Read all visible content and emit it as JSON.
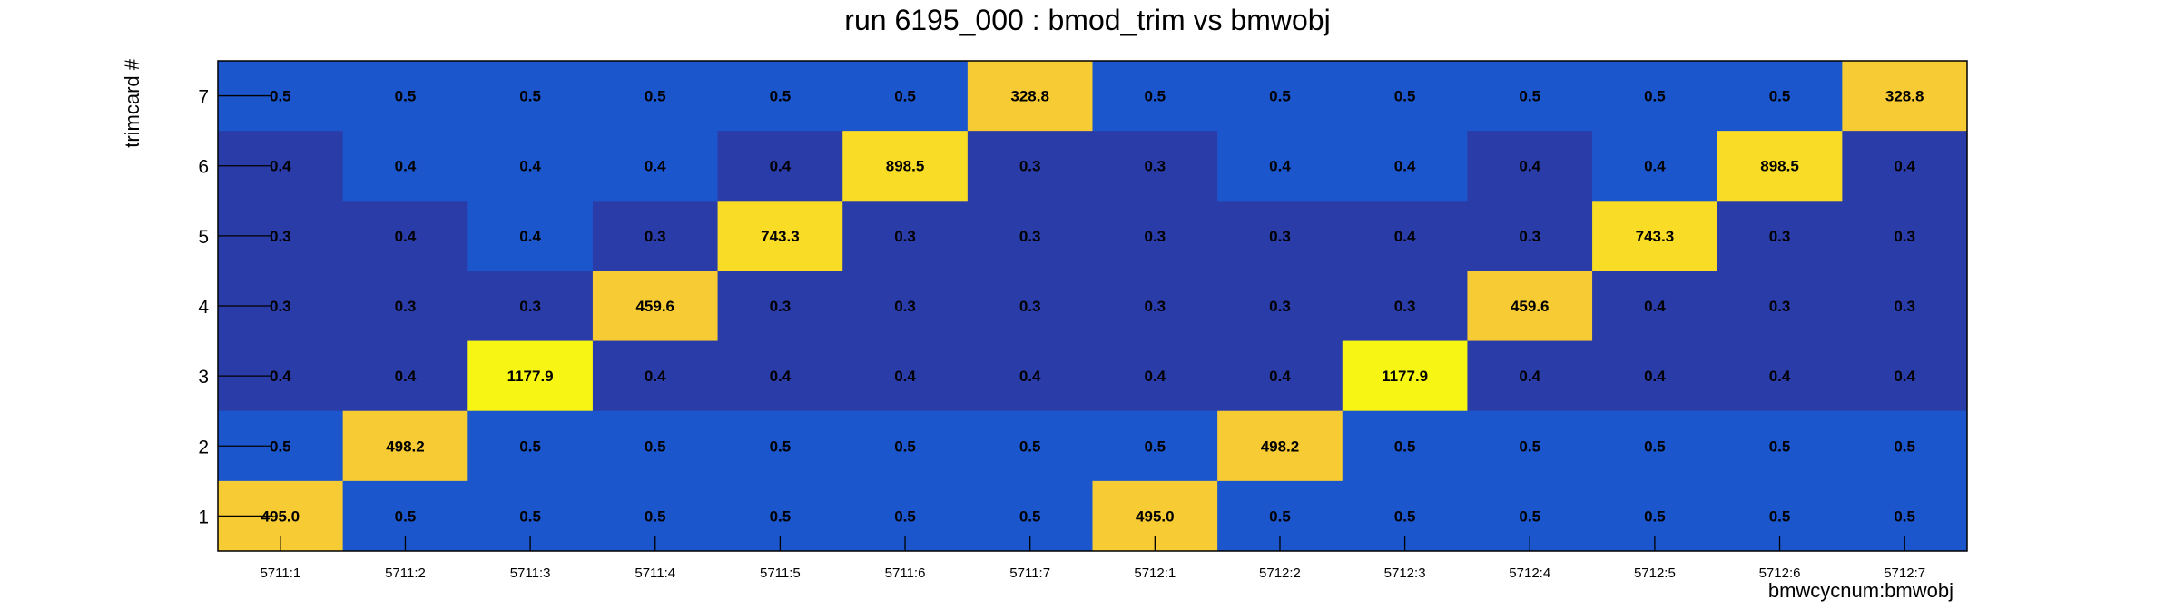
{
  "chart_data": {
    "type": "heatmap",
    "title": "run 6195_000 : bmod_trim vs bmwobj",
    "xlabel": "bmwcycnum:bmwobj",
    "ylabel": "trimcard #",
    "x_categories": [
      "5711:1",
      "5711:2",
      "5711:3",
      "5711:4",
      "5711:5",
      "5711:6",
      "5711:7",
      "5712:1",
      "5712:2",
      "5712:3",
      "5712:4",
      "5712:5",
      "5712:6",
      "5712:7"
    ],
    "y_categories": [
      "1",
      "2",
      "3",
      "4",
      "5",
      "6",
      "7"
    ],
    "values": [
      [
        "495.0",
        "0.5",
        "0.5",
        "0.5",
        "0.5",
        "0.5",
        "0.5",
        "495.0",
        "0.5",
        "0.5",
        "0.5",
        "0.5",
        "0.5",
        "0.5"
      ],
      [
        "0.5",
        "498.2",
        "0.5",
        "0.5",
        "0.5",
        "0.5",
        "0.5",
        "0.5",
        "498.2",
        "0.5",
        "0.5",
        "0.5",
        "0.5",
        "0.5"
      ],
      [
        "0.4",
        "0.4",
        "1177.9",
        "0.4",
        "0.4",
        "0.4",
        "0.4",
        "0.4",
        "0.4",
        "1177.9",
        "0.4",
        "0.4",
        "0.4",
        "0.4"
      ],
      [
        "0.3",
        "0.3",
        "0.3",
        "459.6",
        "0.3",
        "0.3",
        "0.3",
        "0.3",
        "0.3",
        "0.3",
        "459.6",
        "0.4",
        "0.3",
        "0.3"
      ],
      [
        "0.3",
        "0.4",
        "0.4",
        "0.3",
        "743.3",
        "0.3",
        "0.3",
        "0.3",
        "0.3",
        "0.4",
        "0.3",
        "743.3",
        "0.3",
        "0.3"
      ],
      [
        "0.4",
        "0.4",
        "0.4",
        "0.4",
        "0.4",
        "898.5",
        "0.3",
        "0.3",
        "0.4",
        "0.4",
        "0.4",
        "0.4",
        "898.5",
        "0.4"
      ],
      [
        "0.5",
        "0.5",
        "0.5",
        "0.5",
        "0.5",
        "0.5",
        "328.8",
        "0.5",
        "0.5",
        "0.5",
        "0.5",
        "0.5",
        "0.5",
        "328.8"
      ]
    ],
    "colors": {
      "low": "#2a3ca8",
      "mid": "#1c56cc",
      "high": "#f7cb33",
      "peak": "#f7f513"
    },
    "grid": false
  }
}
